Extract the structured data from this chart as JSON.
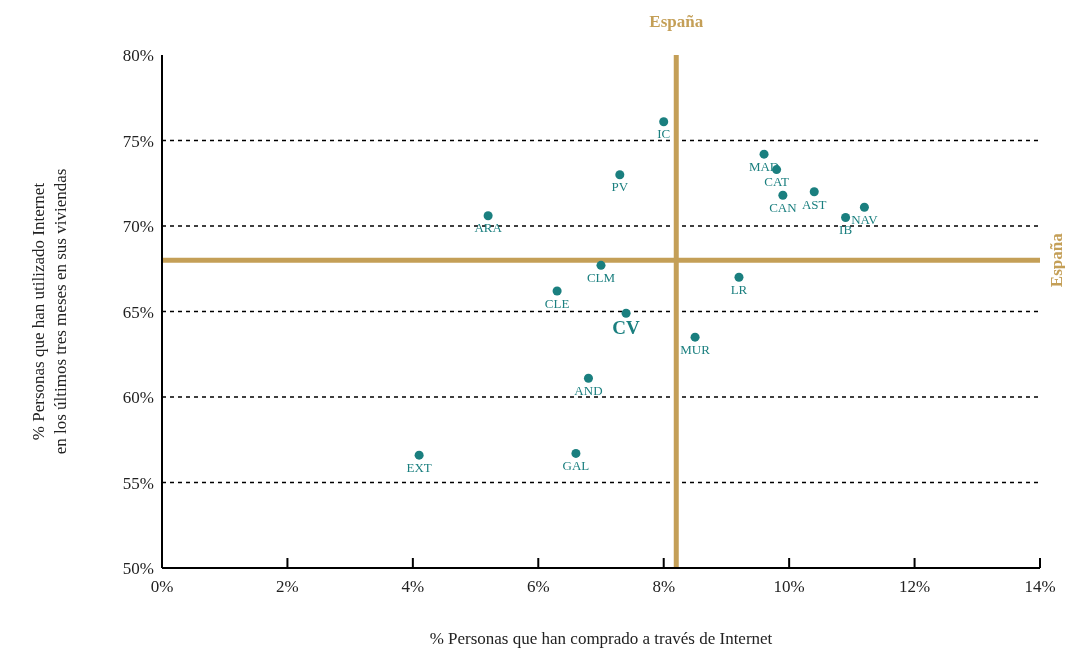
{
  "chart_data": {
    "type": "scatter",
    "xlabel": "% Personas que han comprado a través de Internet",
    "ylabel": "% Personas que han utilizado Internet\nen los últimos tres meses en sus viviendas",
    "series": [
      {
        "color": "#1a7f7f",
        "x": [
          8.0,
          9.6,
          9.8,
          9.9,
          10.4,
          11.2,
          10.9,
          7.3,
          5.2,
          7.0,
          9.2,
          6.3,
          8.5,
          6.8,
          4.1,
          6.6
        ],
        "values": [
          76.1,
          74.2,
          73.3,
          71.8,
          72.0,
          71.1,
          70.5,
          73.0,
          70.6,
          67.7,
          67.0,
          66.2,
          63.5,
          61.1,
          56.6,
          56.7
        ],
        "value_labels": [
          "IC",
          "MAD",
          "CAT",
          "CAN",
          "AST",
          "NAV",
          "IB",
          "PV",
          "ARA",
          "CLM",
          "LR",
          "CLE",
          "MUR",
          "AND",
          "EXT",
          "GAL"
        ]
      },
      {
        "color": "#1a7f7f",
        "x": [
          7.4
        ],
        "values": [
          64.9
        ],
        "value_labels": [
          "CV"
        ]
      }
    ],
    "marker": "circle",
    "xlim": [
      0,
      14
    ],
    "ylim": [
      50,
      80
    ],
    "xticks": [
      {
        "value": 0,
        "label": "0%"
      },
      {
        "value": 2,
        "label": "2%"
      },
      {
        "value": 4,
        "label": "4%"
      },
      {
        "value": 6,
        "label": "6%"
      },
      {
        "value": 8,
        "label": "8%"
      },
      {
        "value": 10,
        "label": "10%"
      },
      {
        "value": 12,
        "label": "12%"
      },
      {
        "value": 14,
        "label": "14%"
      }
    ],
    "yticks": [
      {
        "value": 50,
        "label": "50%"
      },
      {
        "value": 55,
        "label": "55%"
      },
      {
        "value": 60,
        "label": "60%"
      },
      {
        "value": 65,
        "label": "65%"
      },
      {
        "value": 70,
        "label": "70%"
      },
      {
        "value": 75,
        "label": "75%"
      },
      {
        "value": 80,
        "label": "80%"
      }
    ],
    "grid": "y",
    "ref_lines": [
      {
        "axis": "x",
        "value": 8.2,
        "label": "España",
        "color": "#c49f57"
      },
      {
        "axis": "y",
        "value": 68,
        "label": "España",
        "color": "#c49f57"
      }
    ]
  }
}
